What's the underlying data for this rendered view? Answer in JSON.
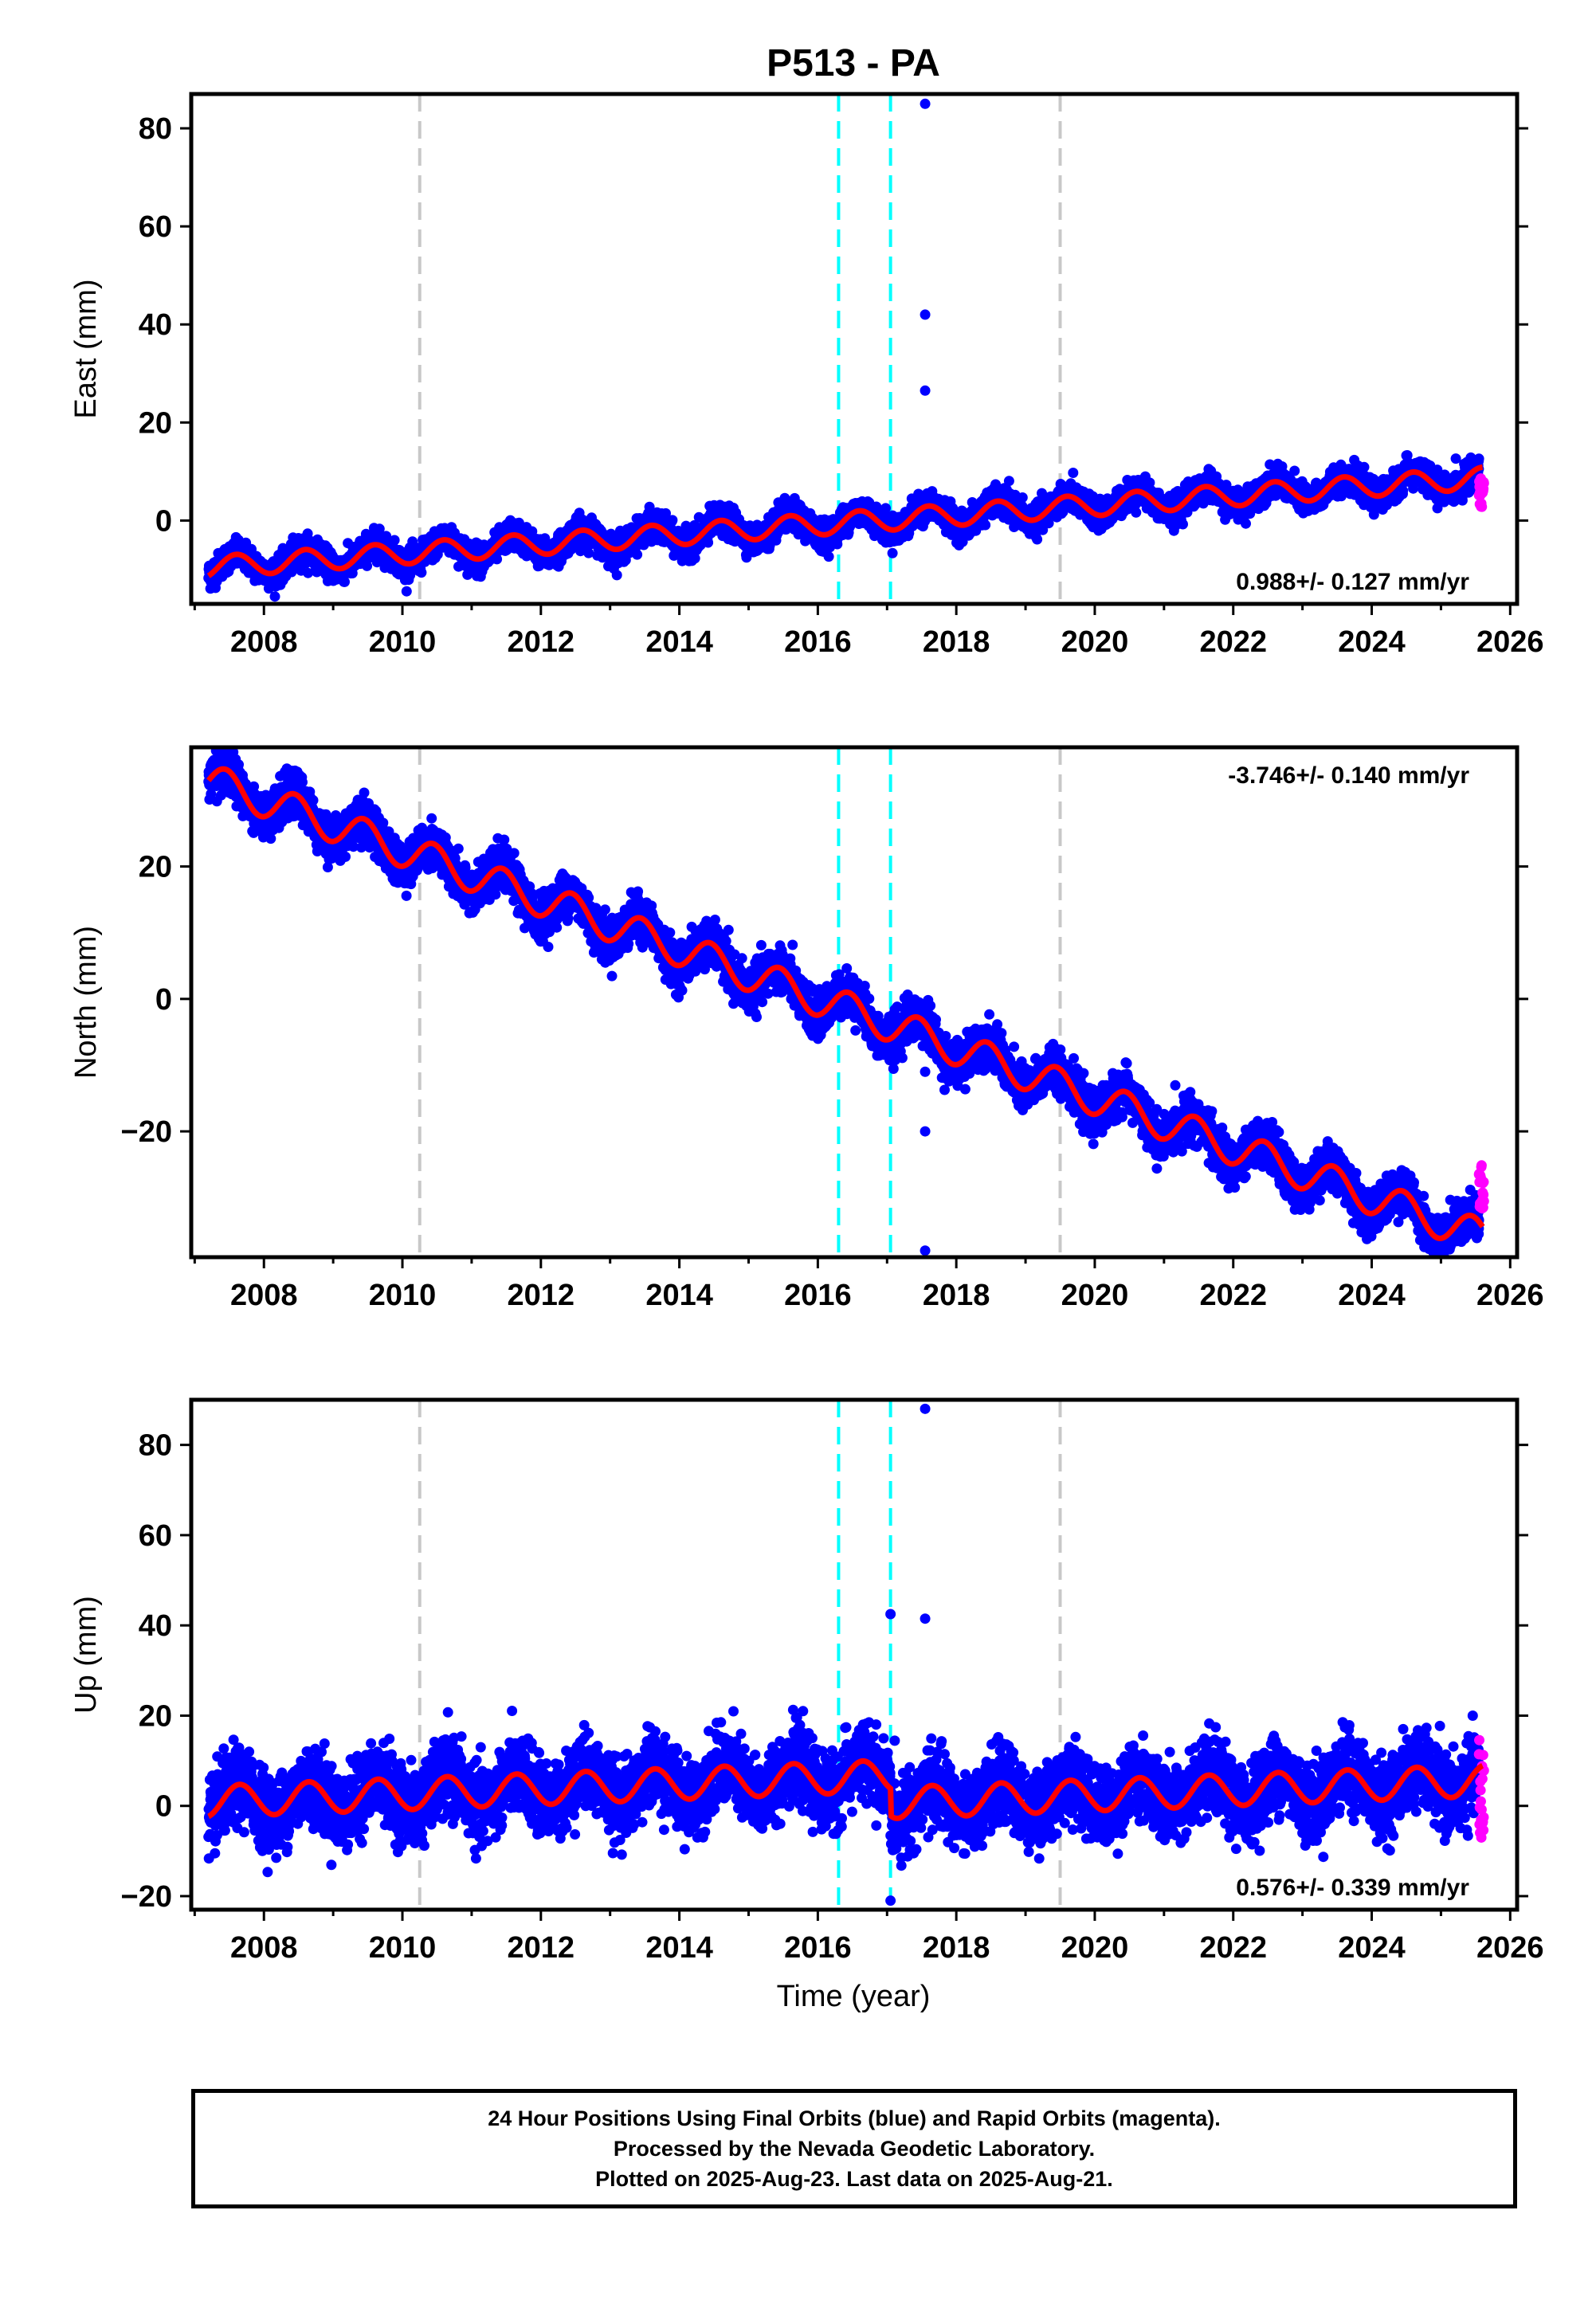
{
  "title": "P513 - PA",
  "xlabel": "Time (year)",
  "colors": {
    "final_orbits": "#0000ff",
    "rapid_orbits": "#ff00ff",
    "model": "#ff0000",
    "equipment_change": "#c8c8c8",
    "event": "#00ffff",
    "frame": "#000000"
  },
  "footer": {
    "line1": "24 Hour Positions Using Final Orbits (blue) and Rapid Orbits (magenta).",
    "line2": "Processed by the Nevada Geodetic Laboratory.",
    "line3": "Plotted on 2025-Aug-23. Last data on 2025-Aug-21."
  },
  "chart_data": [
    {
      "type": "scatter",
      "panel": "east",
      "ylabel": "East (mm)",
      "rate_label": "0.988+/- 0.127 mm/yr",
      "rate_label_position": "bottom-right",
      "xlim": [
        2006.95,
        2026.1
      ],
      "ylim": [
        -17,
        87
      ],
      "xticks": [
        2008,
        2010,
        2012,
        2014,
        2016,
        2018,
        2020,
        2022,
        2024,
        2026
      ],
      "yticks": [
        0,
        20,
        40,
        60,
        80
      ],
      "equipment_change_lines": [
        2010.25,
        2019.5
      ],
      "event_lines": [
        2016.3,
        2017.05
      ],
      "model": {
        "start_year": 2007.2,
        "end_year": 2025.6,
        "start_value": -9.5,
        "rate_mm_per_yr": 0.988,
        "annual_amplitude": 2.2,
        "annual_phase_year": 2007.6
      },
      "scatter_noise": 1.4,
      "outliers": [
        [
          2017.55,
          85
        ],
        [
          2017.55,
          42
        ],
        [
          2017.55,
          26.5
        ]
      ],
      "rapid_points": {
        "start_year": 2025.55,
        "end_year": 2025.62,
        "min": 2,
        "max": 9
      }
    },
    {
      "type": "scatter",
      "panel": "north",
      "ylabel": "North (mm)",
      "rate_label": "-3.746+/- 0.140 mm/yr",
      "rate_label_position": "top-right",
      "xlim": [
        2006.95,
        2026.1
      ],
      "ylim": [
        -39,
        38
      ],
      "xticks": [
        2008,
        2010,
        2012,
        2014,
        2016,
        2018,
        2020,
        2022,
        2024,
        2026
      ],
      "yticks": [
        -20,
        0,
        20
      ],
      "equipment_change_lines": [
        2010.25,
        2019.5
      ],
      "event_lines": [
        2016.3,
        2017.05
      ],
      "model": {
        "start_year": 2007.2,
        "end_year": 2025.6,
        "start_value": 33,
        "rate_mm_per_yr": -3.746,
        "annual_amplitude": 2.6,
        "annual_phase_year": 2007.45
      },
      "scatter_noise": 1.6,
      "outliers": [
        [
          2017.55,
          -11
        ],
        [
          2017.55,
          -20
        ],
        [
          2017.55,
          -38
        ]
      ],
      "rapid_points": {
        "start_year": 2025.55,
        "end_year": 2025.62,
        "min": -32,
        "max": -25
      }
    },
    {
      "type": "scatter",
      "panel": "up",
      "ylabel": "Up (mm)",
      "rate_label": "0.576+/- 0.339 mm/yr",
      "rate_label_position": "bottom-right",
      "xlim": [
        2006.95,
        2026.1
      ],
      "ylim": [
        -23,
        90
      ],
      "xticks": [
        2008,
        2010,
        2012,
        2014,
        2016,
        2018,
        2020,
        2022,
        2024,
        2026
      ],
      "yticks": [
        -20,
        0,
        20,
        40,
        60,
        80
      ],
      "equipment_change_lines": [
        2010.25,
        2019.5
      ],
      "event_lines": [
        2016.3,
        2017.05
      ],
      "model": {
        "start_year": 2007.2,
        "end_year": 2025.6,
        "start_value": 1,
        "rate_mm_per_yr": 0.576,
        "annual_amplitude": 3.5,
        "annual_phase_year": 2007.65,
        "offset_after_2017": -6
      },
      "scatter_noise": 4.0,
      "outliers": [
        [
          2017.05,
          42.5
        ],
        [
          2017.55,
          88
        ],
        [
          2017.55,
          41.5
        ],
        [
          2017.05,
          -21
        ]
      ],
      "rapid_points": {
        "start_year": 2025.55,
        "end_year": 2025.62,
        "min": -8,
        "max": 15.5
      }
    }
  ]
}
